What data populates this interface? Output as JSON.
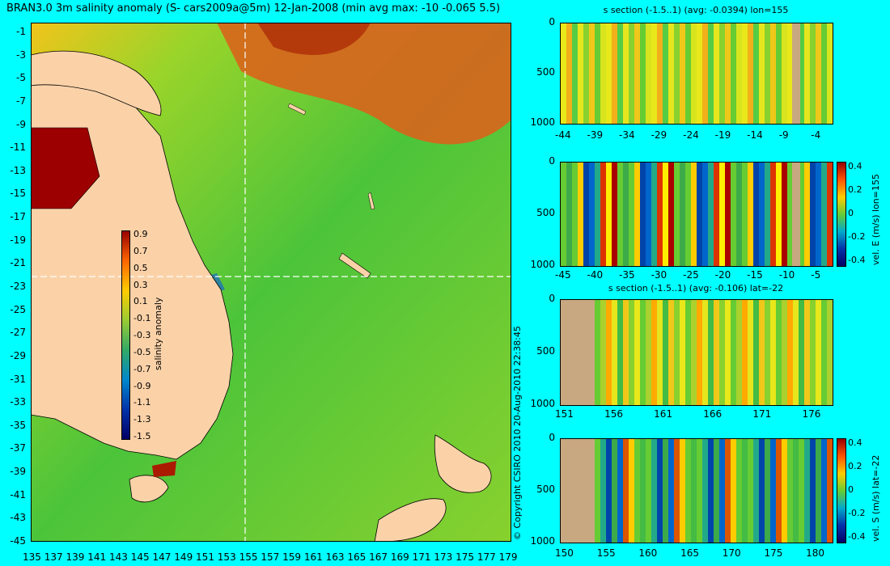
{
  "title": "BRAN3.0 3m salinity anomaly (S- cars2009a@5m) 12-Jan-2008 (min avg max: -10 -0.065 5.5)",
  "map": {
    "lat_ticks": [
      "-1",
      "-3",
      "-5",
      "-7",
      "-9",
      "-11",
      "-13",
      "-15",
      "-17",
      "-19",
      "-21",
      "-23",
      "-25",
      "-27",
      "-29",
      "-31",
      "-33",
      "-35",
      "-37",
      "-39",
      "-41",
      "-43",
      "-45"
    ],
    "lon_ticks": [
      "135",
      "137",
      "139",
      "141",
      "143",
      "145",
      "147",
      "149",
      "151",
      "153",
      "155",
      "157",
      "159",
      "161",
      "163",
      "165",
      "167",
      "169",
      "171",
      "173",
      "175",
      "177",
      "179"
    ],
    "colorbar": {
      "label": "salinity anomaly",
      "ticks": [
        "0.9",
        "0.7",
        "0.5",
        "0.3",
        "0.1",
        "-0.1",
        "-0.3",
        "-0.5",
        "-0.7",
        "-0.9",
        "-1.1",
        "-1.3",
        "-1.5"
      ]
    },
    "section_lon": 155,
    "section_lat": -22,
    "colors": {
      "land": "#fbd2a8",
      "ocean_mid": "#66cc33",
      "fresh": "#0000aa",
      "salty": "#aa0000"
    }
  },
  "copyright": "© Copyright CSIRO 2010   20-Aug-2010 22:38:45",
  "panels": [
    {
      "title": "s section (-1.5..1) (avg: -0.0394) lon=155",
      "x_ticks": [
        "-44",
        "-39",
        "-34",
        "-29",
        "-24",
        "-19",
        "-14",
        "-9",
        "-4"
      ],
      "y_ticks": [
        "0",
        "500",
        "1000"
      ],
      "side_label": "",
      "colorbar_ticks": []
    },
    {
      "title": "",
      "x_ticks": [
        "-45",
        "-40",
        "-35",
        "-30",
        "-25",
        "-20",
        "-15",
        "-10",
        "-5"
      ],
      "y_ticks": [
        "0",
        "500",
        "1000"
      ],
      "side_label": "vel. E (m/s) lon=155",
      "colorbar_ticks": [
        "0.4",
        "0.2",
        "0",
        "-0.2",
        "-0.4"
      ]
    },
    {
      "title": "s section (-1.5..1) (avg: -0.106) lat=-22",
      "x_ticks": [
        "151",
        "156",
        "161",
        "166",
        "171",
        "176"
      ],
      "y_ticks": [
        "0",
        "500",
        "1000"
      ],
      "side_label": "",
      "colorbar_ticks": []
    },
    {
      "title": "",
      "x_ticks": [
        "150",
        "155",
        "160",
        "165",
        "170",
        "175",
        "180"
      ],
      "y_ticks": [
        "0",
        "500",
        "1000"
      ],
      "side_label": "vel. S (m/s) lat=-22",
      "colorbar_ticks": [
        "0.4",
        "0.2",
        "0",
        "-0.2",
        "-0.4"
      ]
    }
  ]
}
